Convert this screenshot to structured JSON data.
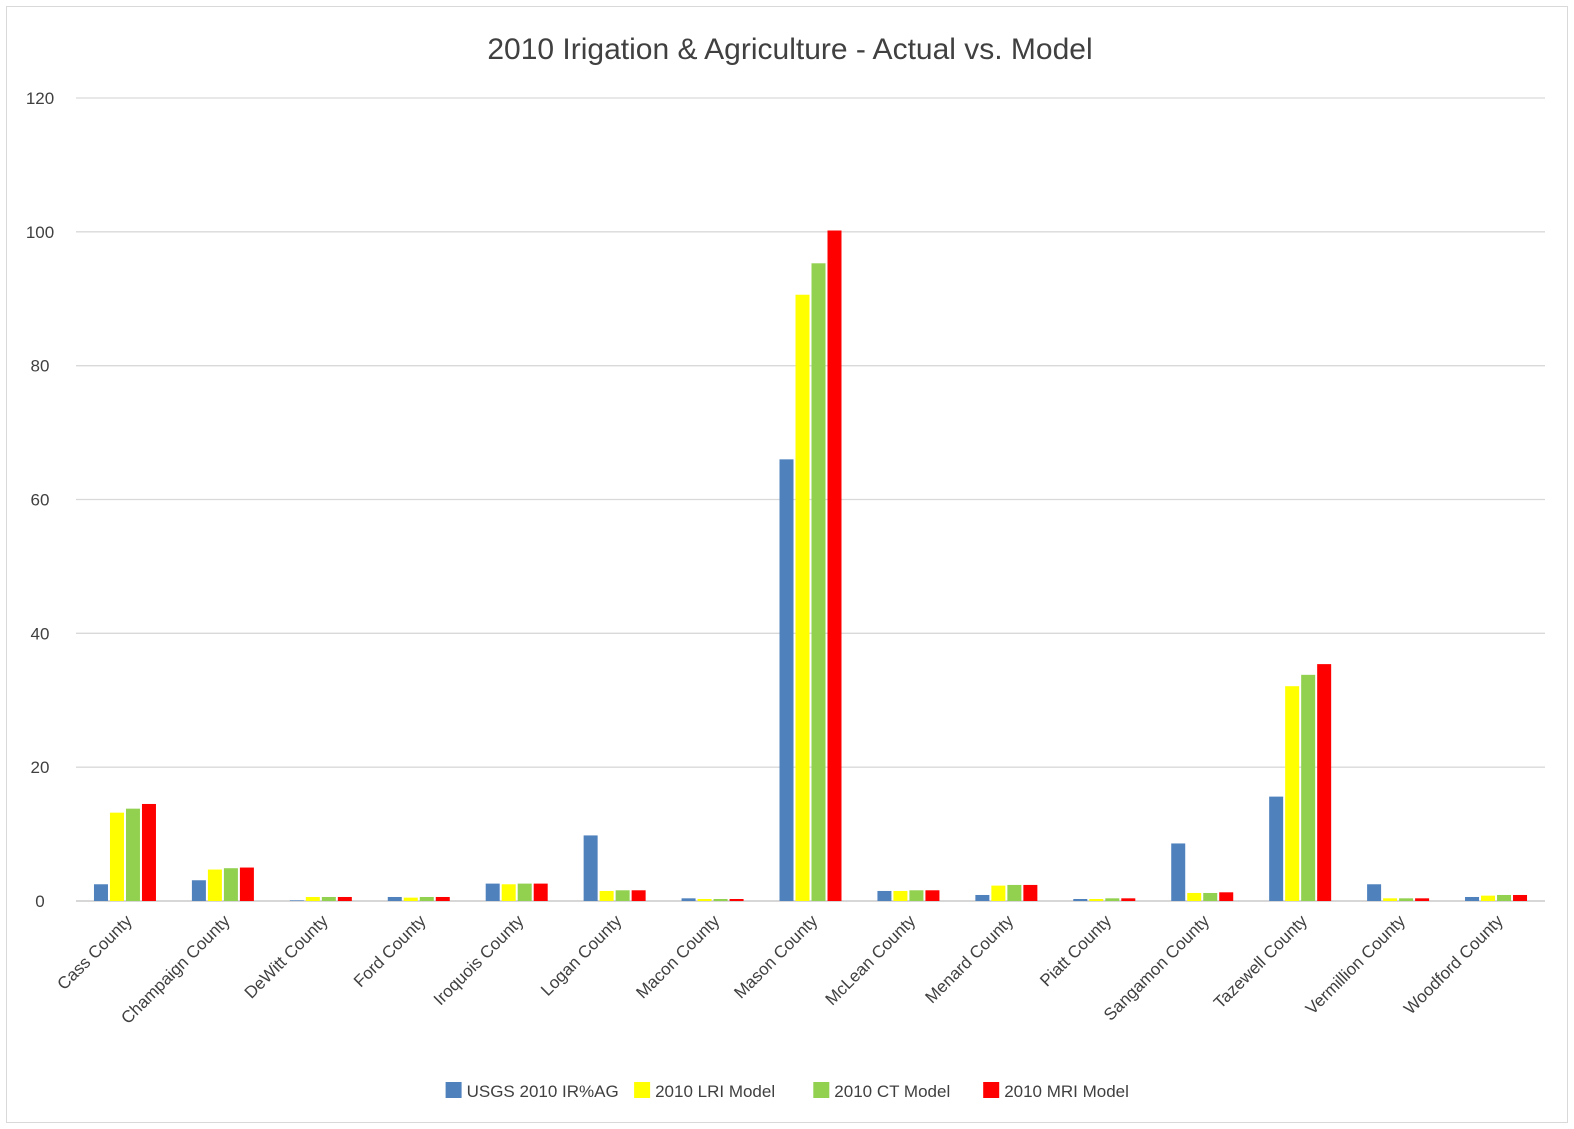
{
  "chart_data": {
    "type": "bar",
    "title": "2010 Irigation & Agriculture - Actual vs. Model",
    "xlabel": "",
    "ylabel": "",
    "ylim": [
      0,
      120
    ],
    "yticks": [
      0,
      20,
      40,
      60,
      80,
      100,
      120
    ],
    "grid": true,
    "legend_position": "bottom",
    "categories": [
      "Cass County",
      "Champaign County",
      "DeWitt County",
      "Ford County",
      "Iroquois County",
      "Logan County",
      "Macon County",
      "Mason County",
      "McLean County",
      "Menard County",
      "Piatt County",
      "Sangamon County",
      "Tazewell County",
      "Vermillion County",
      "Woodford County"
    ],
    "series": [
      {
        "name": "USGS 2010 IR%AG",
        "color": "#4F81BD",
        "values": [
          2.5,
          3.1,
          0.1,
          0.6,
          2.6,
          9.8,
          0.4,
          66,
          1.5,
          0.9,
          0.3,
          8.6,
          15.6,
          2.5,
          0.6
        ]
      },
      {
        "name": "2010 LRI Model",
        "color": "#FFFF00",
        "values": [
          13.2,
          4.7,
          0.6,
          0.5,
          2.5,
          1.5,
          0.3,
          90.6,
          1.5,
          2.3,
          0.3,
          1.2,
          32.1,
          0.4,
          0.8
        ]
      },
      {
        "name": "2010 CT Model",
        "color": "#92D050",
        "values": [
          13.8,
          4.9,
          0.6,
          0.6,
          2.6,
          1.6,
          0.3,
          95.3,
          1.6,
          2.4,
          0.4,
          1.2,
          33.8,
          0.4,
          0.9
        ]
      },
      {
        "name": "2010 MRI Model",
        "color": "#FF0000",
        "values": [
          14.5,
          5.0,
          0.6,
          0.6,
          2.6,
          1.6,
          0.3,
          100.2,
          1.6,
          2.4,
          0.4,
          1.3,
          35.4,
          0.4,
          0.9
        ]
      }
    ]
  }
}
